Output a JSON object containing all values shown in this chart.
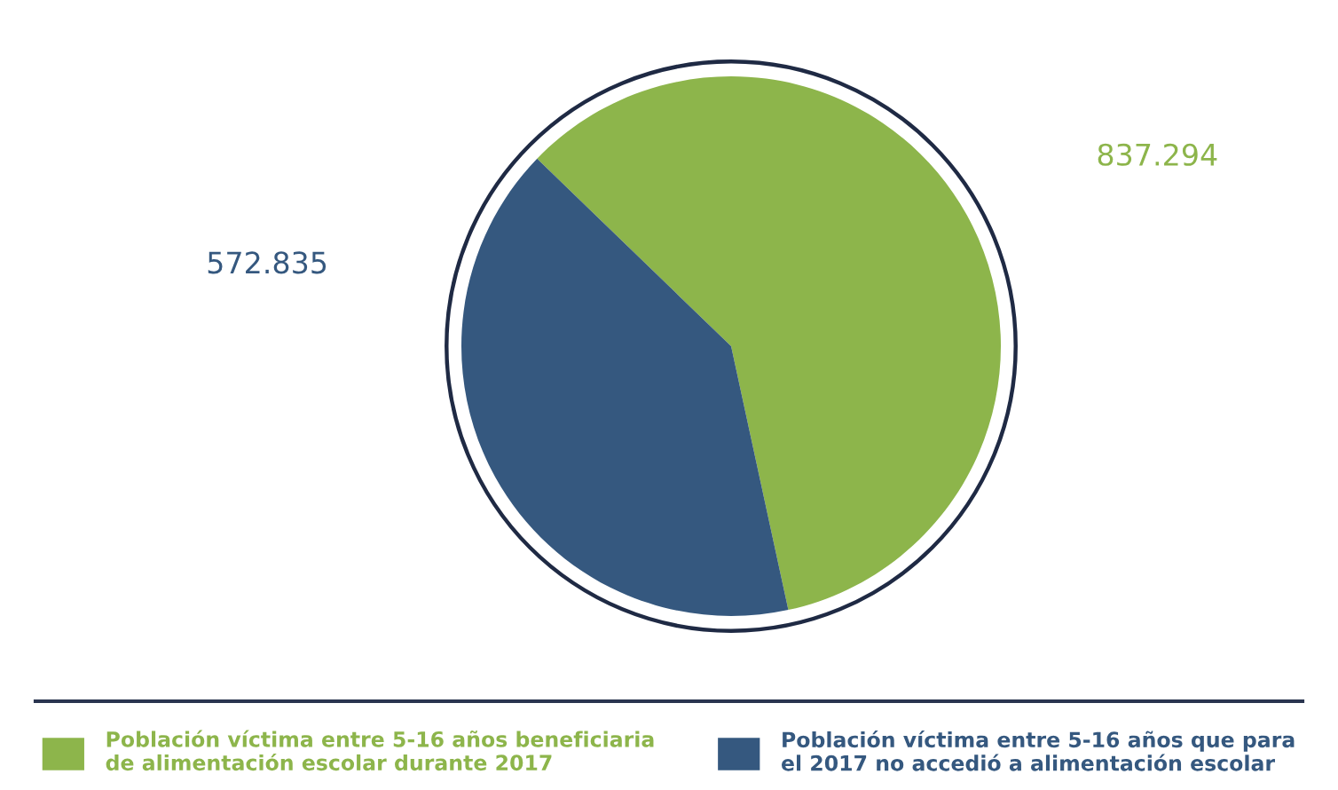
{
  "chart_data": {
    "type": "pie",
    "categories": [
      "Población víctima entre 5-16 años beneficiaria\nde alimentación escolar durante 2017",
      "Población víctima entre 5-16 años que para\nel 2017 no accedió a alimentación escolar"
    ],
    "values": [
      837294,
      572835
    ],
    "value_labels": [
      "837.294",
      "572.835"
    ],
    "colors": [
      "#8db54b",
      "#35587f"
    ],
    "legend": "bottom"
  }
}
